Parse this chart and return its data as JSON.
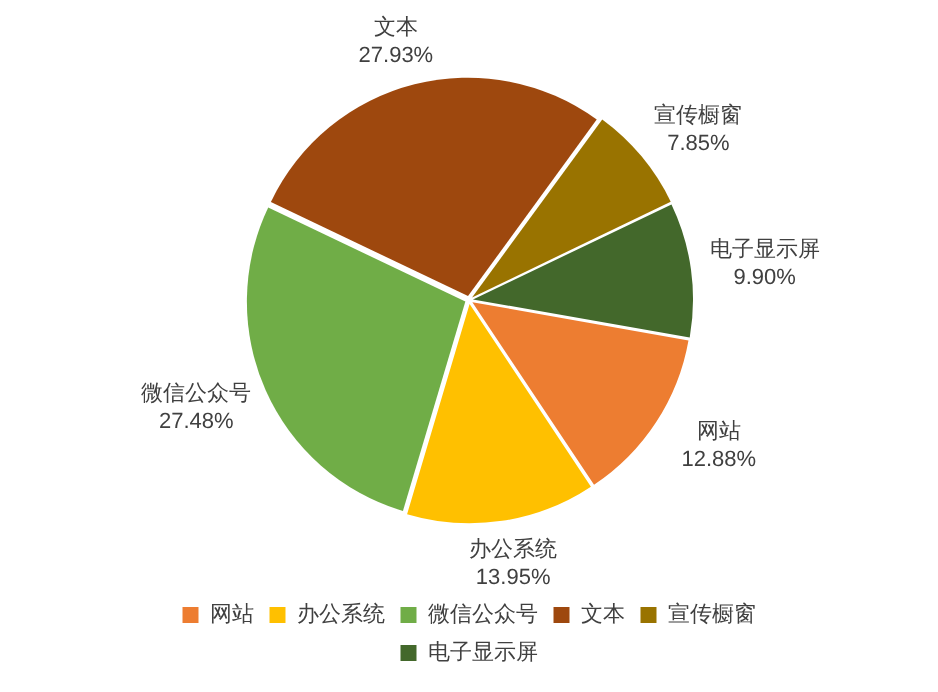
{
  "chart_data": {
    "type": "pie",
    "categories": [
      "网站",
      "办公系统",
      "微信公众号",
      "文本",
      "宣传橱窗",
      "电子显示屏"
    ],
    "values": [
      12.88,
      13.95,
      27.48,
      27.93,
      7.85,
      9.9
    ],
    "colors": [
      "#ed7d31",
      "#ffc000",
      "#70ad47",
      "#9e480e",
      "#997300",
      "#43682b"
    ],
    "value_labels": [
      "12.88%",
      "13.95%",
      "27.48%",
      "27.93%",
      "7.85%",
      "9.90%"
    ],
    "legend": "bottom"
  }
}
